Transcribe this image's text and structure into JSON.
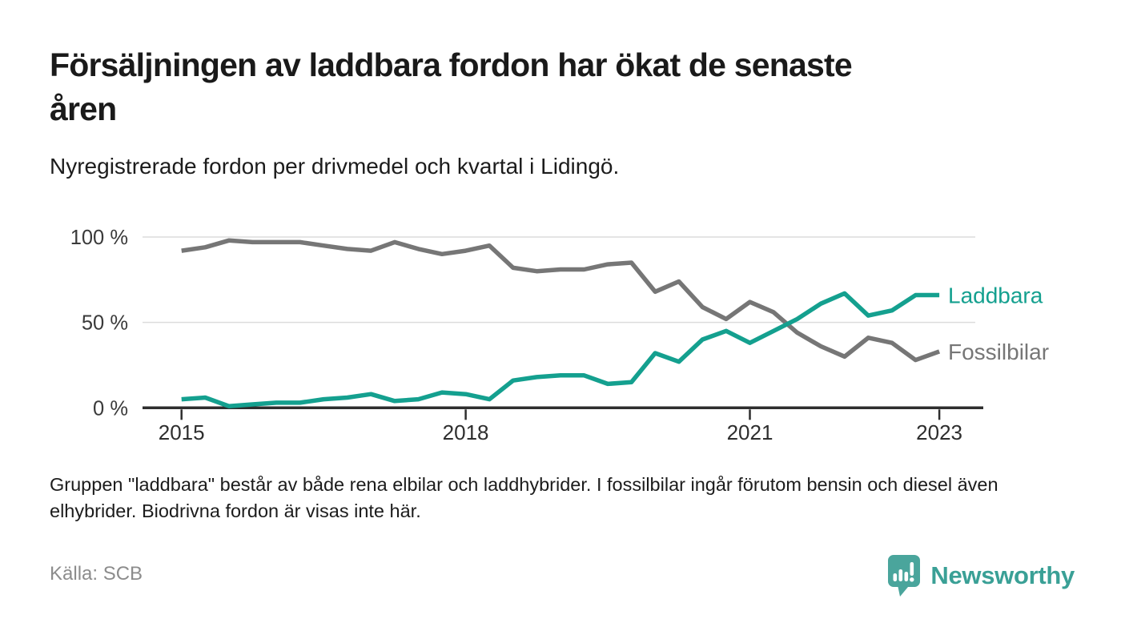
{
  "header": {
    "title_line1": "Försäljningen av laddbara fordon har ökat de senaste",
    "title_line2": "åren",
    "subtitle": "Nyregistrerade fordon per drivmedel och kvartal i Lidingö."
  },
  "chart_data": {
    "type": "line",
    "x_start": "2015 Q1",
    "x_end": "2023 Q1",
    "frequency": "quarterly",
    "ylim": [
      0,
      100
    ],
    "grid": "horizontal",
    "legend_position": "right of line ends",
    "x_ticks": [
      {
        "label": "2015",
        "index": 0
      },
      {
        "label": "2018",
        "index": 12
      },
      {
        "label": "2021",
        "index": 24
      },
      {
        "label": "2023",
        "index": 32
      }
    ],
    "y_ticks": [
      {
        "label": "0 %",
        "value": 0
      },
      {
        "label": "50 %",
        "value": 50
      },
      {
        "label": "100 %",
        "value": 100
      }
    ],
    "series": [
      {
        "name": "Fossilbilar",
        "color": "#767676",
        "values": [
          92,
          94,
          98,
          97,
          97,
          97,
          95,
          93,
          92,
          97,
          93,
          90,
          92,
          95,
          82,
          80,
          81,
          81,
          84,
          85,
          68,
          74,
          59,
          52,
          62,
          56,
          44,
          36,
          30,
          41,
          38,
          28,
          33
        ]
      },
      {
        "name": "Laddbara",
        "color": "#14a08f",
        "values": [
          5,
          6,
          1,
          2,
          3,
          3,
          5,
          6,
          8,
          4,
          5,
          9,
          8,
          5,
          16,
          18,
          19,
          19,
          14,
          15,
          32,
          27,
          40,
          45,
          38,
          45,
          52,
          61,
          67,
          54,
          57,
          66,
          66
        ]
      }
    ]
  },
  "footer": {
    "note": "Gruppen \"laddbara\" består av både rena elbilar och laddhybrider. I fossilbilar ingår förutom bensin och diesel även elhybrider. Biodrivna fordon är visas inte här.",
    "source": "Källa: SCB",
    "brand": "Newsworthy",
    "brand_color": "#3aa096",
    "brand_icon_color": "#4aa59c"
  }
}
